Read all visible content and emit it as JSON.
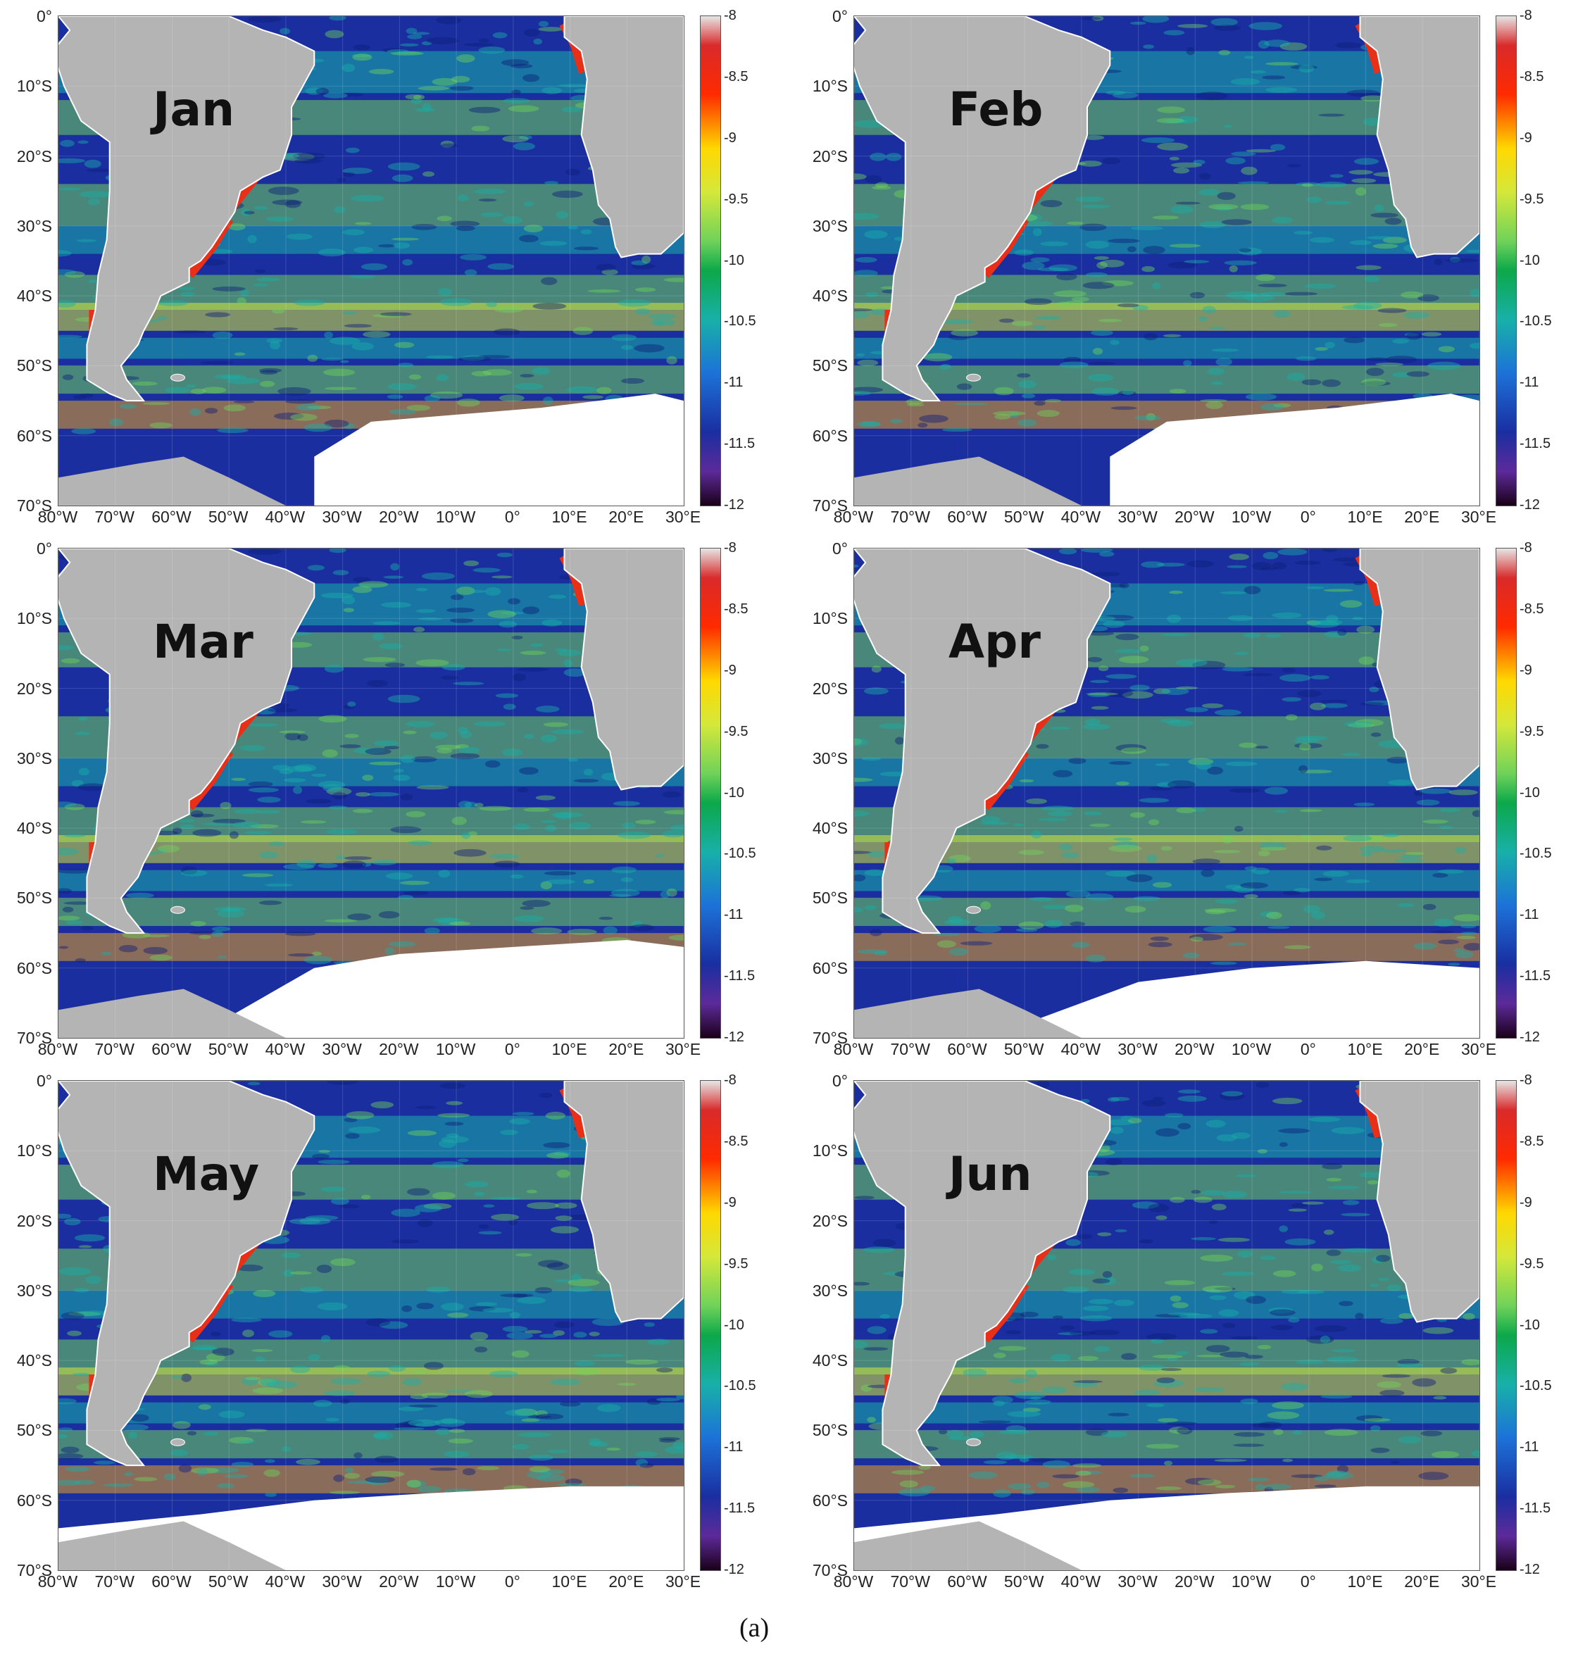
{
  "colorbar": {
    "ticks": [
      "-8",
      "-8.5",
      "-9",
      "-9.5",
      "-10",
      "-10.5",
      "-11",
      "-11.5",
      "-12"
    ]
  },
  "axes": {
    "y_ticks": [
      "0°",
      "10°S",
      "20°S",
      "30°S",
      "40°S",
      "50°S",
      "60°S",
      "70°S"
    ],
    "x_ticks": [
      "80°W",
      "70°W",
      "60°W",
      "50°W",
      "40°W",
      "30°W",
      "20°W",
      "10°W",
      "0°",
      "10°E",
      "20°E",
      "30°E"
    ]
  },
  "panels": [
    {
      "month": "Jan"
    },
    {
      "month": "Feb"
    },
    {
      "month": "Mar"
    },
    {
      "month": "Apr"
    },
    {
      "month": "May"
    },
    {
      "month": "Jun"
    }
  ],
  "caption": "(a)",
  "colors": {
    "land": "#b4b4b4",
    "ice": "#ffffff",
    "ocean_low": "#1a2ea0",
    "ocean_mid": "#18b0a8",
    "ocean_high": "#6fd25a",
    "coastal_high": "#e83018"
  }
}
